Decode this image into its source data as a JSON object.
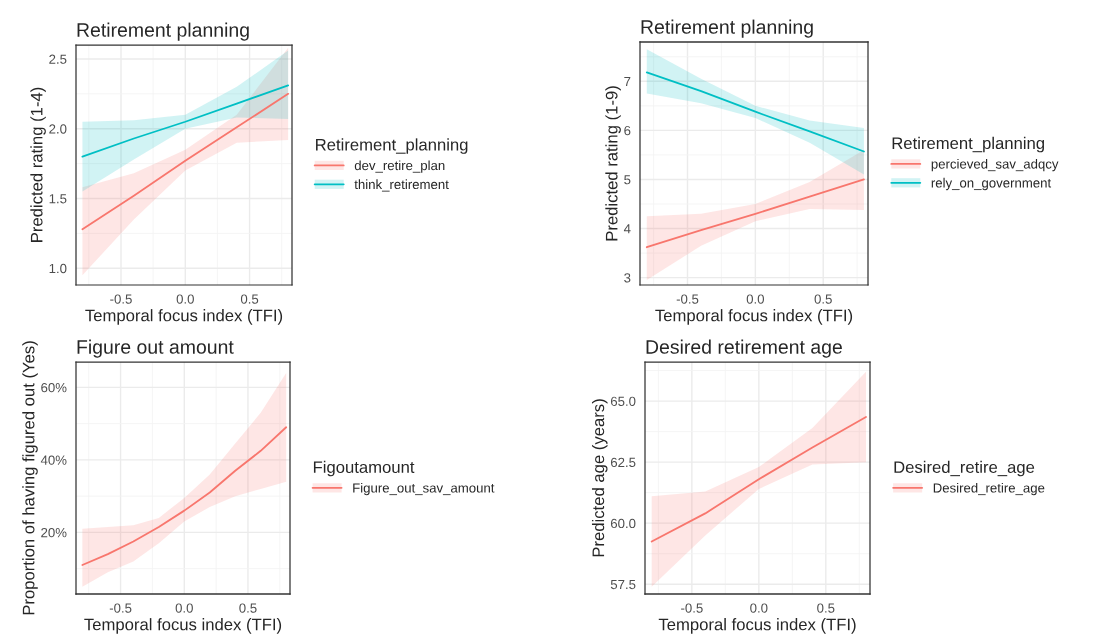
{
  "chart_data": [
    {
      "type": "line",
      "title": "Retirement planning",
      "xlabel": "Temporal focus index (TFI)",
      "ylabel": "Predicted rating (1-4)",
      "legend_title": "Retirement_planning",
      "legend": "right",
      "grid": true,
      "xlim": [
        -0.85,
        0.83
      ],
      "ylim": [
        0.88,
        2.6
      ],
      "xticks": [
        {
          "value": -0.5,
          "label": "-0.5"
        },
        {
          "value": 0,
          "label": "0.0"
        },
        {
          "value": 0.5,
          "label": "0.5"
        }
      ],
      "yticks": [
        {
          "value": 1,
          "label": "1.0"
        },
        1.5,
        {
          "value": 2,
          "label": "2.0"
        },
        2.5
      ],
      "x": [
        -0.8,
        -0.4,
        0,
        0.4,
        0.8
      ],
      "series": [
        {
          "name": "dev_retire_plan",
          "color": "#f8766d",
          "values": [
            1.28,
            1.52,
            1.77,
            2.01,
            2.25
          ],
          "lower": [
            0.95,
            1.35,
            1.7,
            1.9,
            1.92
          ],
          "upper": [
            1.58,
            1.68,
            1.85,
            2.1,
            2.58
          ]
        },
        {
          "name": "think_retirement",
          "color": "#00bfc4",
          "values": [
            1.8,
            1.93,
            2.05,
            2.18,
            2.31
          ],
          "lower": [
            1.55,
            1.78,
            2.0,
            2.08,
            2.07
          ],
          "upper": [
            2.05,
            2.06,
            2.1,
            2.3,
            2.56
          ]
        }
      ]
    },
    {
      "type": "line",
      "title": "Retirement planning",
      "xlabel": "Temporal focus index (TFI)",
      "ylabel": "Predicted rating (1-9)",
      "legend_title": "Retirement_planning",
      "legend": "right",
      "grid": true,
      "xlim": [
        -0.85,
        0.83
      ],
      "ylim": [
        2.85,
        7.8
      ],
      "xticks": [
        {
          "value": -0.5,
          "label": "-0.5"
        },
        {
          "value": 0,
          "label": "0.0"
        },
        {
          "value": 0.5,
          "label": "0.5"
        }
      ],
      "yticks": [
        3,
        4,
        5,
        6,
        7
      ],
      "x": [
        -0.8,
        -0.4,
        0,
        0.4,
        0.8
      ],
      "series": [
        {
          "name": "percieved_sav_adqcy",
          "color": "#f8766d",
          "values": [
            3.62,
            3.97,
            4.3,
            4.65,
            5.0
          ],
          "lower": [
            2.95,
            3.65,
            4.15,
            4.4,
            4.38
          ],
          "upper": [
            4.25,
            4.3,
            4.5,
            4.95,
            5.6
          ]
        },
        {
          "name": "rely_on_government",
          "color": "#00bfc4",
          "values": [
            7.18,
            6.8,
            6.38,
            5.98,
            5.57
          ],
          "lower": [
            6.75,
            6.55,
            6.25,
            5.75,
            5.1
          ],
          "upper": [
            7.65,
            7.05,
            6.5,
            6.2,
            6.05
          ]
        }
      ]
    },
    {
      "type": "line",
      "title": "Figure out amount",
      "xlabel": "Temporal focus index (TFI)",
      "ylabel": "Proportion of having figured out (Yes)",
      "legend_title": "Figoutamount",
      "legend": "right",
      "grid": true,
      "xlim": [
        -0.85,
        0.83
      ],
      "ylim": [
        3,
        67
      ],
      "xticks": [
        {
          "value": -0.5,
          "label": "-0.5"
        },
        {
          "value": 0,
          "label": "0.0"
        },
        {
          "value": 0.5,
          "label": "0.5"
        }
      ],
      "yticks": [
        {
          "value": 20,
          "label": "20%"
        },
        {
          "value": 40,
          "label": "40%"
        },
        {
          "value": 60,
          "label": "60%"
        }
      ],
      "x": [
        -0.8,
        -0.6,
        -0.4,
        -0.2,
        0,
        0.2,
        0.4,
        0.6,
        0.8
      ],
      "series": [
        {
          "name": "Figure_out_sav_amount",
          "color": "#f8766d",
          "values": [
            11,
            14,
            17.5,
            21.5,
            26,
            31,
            37,
            42.5,
            49
          ],
          "lower": [
            5,
            9,
            12,
            17,
            23,
            27,
            30,
            32,
            34
          ],
          "upper": [
            21,
            21.5,
            22,
            24,
            29.5,
            36,
            44.5,
            53,
            64
          ]
        }
      ]
    },
    {
      "type": "line",
      "title": "Desired retirement age",
      "xlabel": "Temporal focus index (TFI)",
      "ylabel": "Predicted age (years)",
      "legend_title": "Desired_retire_age",
      "legend": "right",
      "grid": true,
      "xlim": [
        -0.85,
        0.83
      ],
      "ylim": [
        57.1,
        66.6
      ],
      "xticks": [
        {
          "value": -0.5,
          "label": "-0.5"
        },
        {
          "value": 0,
          "label": "0.0"
        },
        {
          "value": 0.5,
          "label": "0.5"
        }
      ],
      "yticks": [
        57.5,
        {
          "value": 60,
          "label": "60.0"
        },
        62.5,
        {
          "value": 65,
          "label": "65.0"
        }
      ],
      "x": [
        -0.8,
        -0.4,
        0,
        0.4,
        0.8
      ],
      "series": [
        {
          "name": "Desired_retire_age",
          "color": "#f8766d",
          "values": [
            59.25,
            60.4,
            61.8,
            63.1,
            64.35
          ],
          "lower": [
            57.4,
            59.5,
            61.4,
            62.4,
            62.5
          ],
          "upper": [
            61.1,
            61.3,
            62.3,
            63.9,
            66.2
          ]
        }
      ]
    }
  ]
}
